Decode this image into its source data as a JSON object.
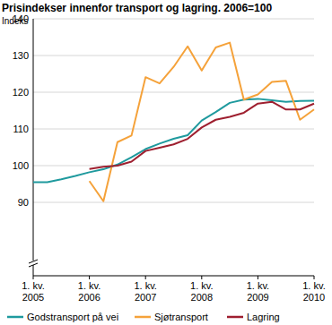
{
  "chart_data": {
    "type": "line",
    "title": "Prisindekser innenfor transport og lagring. 2006=100",
    "y_label": "Indeks",
    "categories": [
      "1. kv.\n2005",
      null,
      null,
      null,
      "1. kv.\n2006",
      null,
      null,
      null,
      "1. kv.\n2007",
      null,
      null,
      null,
      "1. kv.\n2008",
      null,
      null,
      null,
      "1. kv.\n2009",
      null,
      null,
      null,
      "1. kv.\n2010"
    ],
    "series": [
      {
        "name": "Godstransport på vei",
        "color": "#1f9a9e",
        "values": [
          95.5,
          95.5,
          96.3,
          97.2,
          98.2,
          99.0,
          100.3,
          102.3,
          104.5,
          106.0,
          107.3,
          108.3,
          112.3,
          114.6,
          117.1,
          118.0,
          118.2,
          117.8,
          117.4,
          117.6,
          117.7
        ]
      },
      {
        "name": "Sjøtransport",
        "color": "#f5a23a",
        "values": [
          null,
          null,
          null,
          null,
          95.8,
          90.3,
          106.4,
          108.2,
          124.1,
          122.4,
          126.9,
          132.5,
          125.9,
          132.2,
          133.5,
          118.0,
          119.4,
          122.8,
          123.1,
          112.5,
          115.3
        ]
      },
      {
        "name": "Lagring",
        "color": "#9e1f2f",
        "values": [
          null,
          null,
          null,
          null,
          99.1,
          99.7,
          100.0,
          101.1,
          104.0,
          104.9,
          105.8,
          107.3,
          110.4,
          112.5,
          113.3,
          114.4,
          116.9,
          117.4,
          115.3,
          115.3,
          116.9
        ]
      }
    ],
    "ylim": [
      70,
      140
    ],
    "yticks": [
      90,
      100,
      110,
      120,
      130,
      140
    ],
    "grid": true,
    "legend": "bottom"
  }
}
